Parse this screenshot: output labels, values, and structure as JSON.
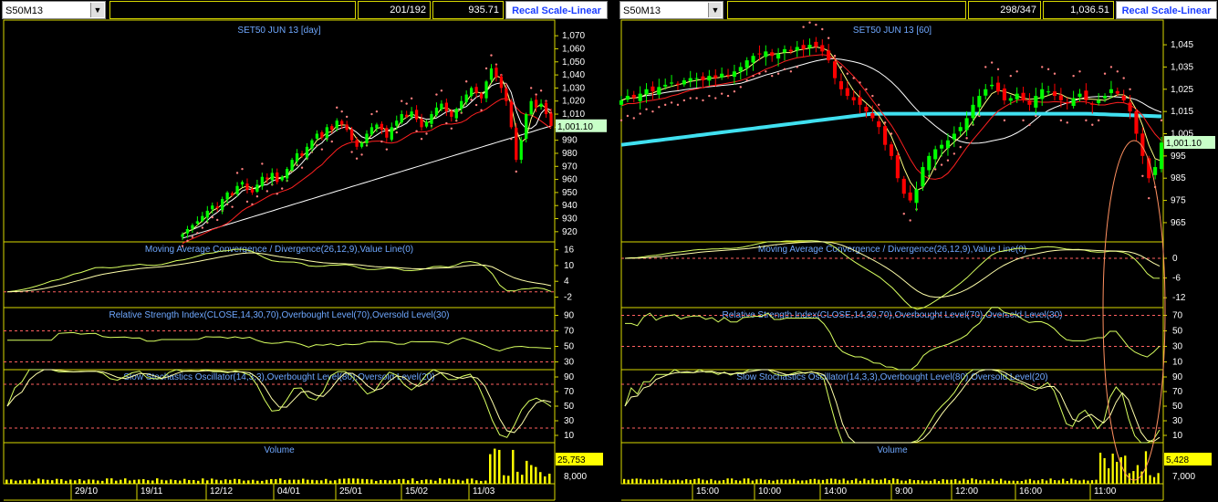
{
  "panes": [
    {
      "symbol": "S50M13",
      "count": "201/192",
      "price_readout": "935.71",
      "recal_label": "Recal Scale-Linear",
      "title": "SET50 JUN 13   [day]",
      "price_ticks": [
        "1,070",
        "1,060",
        "1,050",
        "1,040",
        "1,030",
        "1,020",
        "1,010",
        "1,000",
        "990",
        "980",
        "970",
        "960",
        "950",
        "940",
        "930",
        "920"
      ],
      "last_price": "1,001.10",
      "macd_title": "Moving Average Convergence / Divergence(26,12,9),Value Line(0)",
      "macd_ticks": [
        "16",
        "10",
        "4",
        "-2"
      ],
      "rsi_title": "Relative Strength Index(CLOSE,14,30,70),Overbought Level(70),Oversold Level(30)",
      "rsi_ticks": [
        "90",
        "70",
        "50",
        "30"
      ],
      "stoch_title": "Slow Stochastics Oscillator(14,3,3),Overbought Level(80),Oversold Level(20)",
      "stoch_ticks": [
        "90",
        "70",
        "50",
        "30",
        "10"
      ],
      "vol_title": "Volume",
      "vol_ticks": [
        "8,000"
      ],
      "vol_last": "25,753",
      "date_labels": [
        "29/10",
        "19/11",
        "12/12",
        "04/01",
        "25/01",
        "15/02",
        "11/03"
      ]
    },
    {
      "symbol": "S50M13",
      "count": "298/347",
      "price_readout": "1,036.51",
      "recal_label": "Recal Scale-Linear",
      "title": "SET50 JUN 13   [60]",
      "price_ticks": [
        "1,045",
        "1,035",
        "1,025",
        "1,015",
        "1,005",
        "995",
        "985",
        "975",
        "965"
      ],
      "last_price": "1,001.10",
      "macd_title": "Moving Average Convergence / Divergence(26,12,9),Value Line(0)",
      "macd_ticks": [
        "0",
        "-6",
        "-12"
      ],
      "rsi_title": "Relative Strength Index(CLOSE,14,30,70),Overbought Level(70),Oversold Level(30)",
      "rsi_ticks": [
        "70",
        "50",
        "30",
        "10"
      ],
      "stoch_title": "Slow Stochastics Oscillator(14,3,3),Overbought Level(80),Oversold Level(20)",
      "stoch_ticks": [
        "90",
        "70",
        "50",
        "30",
        "10"
      ],
      "vol_title": "Volume",
      "vol_ticks": [
        "7,000"
      ],
      "vol_last": "5,428",
      "date_labels": [
        "15:00",
        "10:00",
        "14:00",
        "9:00",
        "12:00",
        "16:00",
        "11:00"
      ]
    }
  ],
  "colors": {
    "bull": "#00ff00",
    "bear": "#ff0000",
    "grid": "#d8d800",
    "title": "#6fa8ff",
    "macd": "#d8ff60",
    "signal": "#ffffaa",
    "ref_line": "#ff6060",
    "sar": "#ff8080",
    "ma_white": "#ffffff",
    "ma_red": "#ff2020",
    "ma_cyan": "#40e0f0",
    "volume": "#ffff00"
  },
  "chart_data": [
    {
      "type": "candlestick",
      "title": "SET50 JUN 13   [day]",
      "ylim": [
        915,
        1075
      ],
      "last_price": 1001.1,
      "closes": [
        918,
        922,
        925,
        928,
        932,
        936,
        940,
        938,
        945,
        950,
        948,
        955,
        958,
        952,
        950,
        956,
        962,
        960,
        965,
        958,
        962,
        968,
        975,
        980,
        978,
        985,
        990,
        995,
        992,
        1000,
        998,
        1005,
        1002,
        998,
        990,
        985,
        988,
        995,
        1000,
        1002,
        998,
        992,
        1000,
        1005,
        1010,
        1008,
        1012,
        1006,
        1000,
        1004,
        1010,
        1015,
        1018,
        1012,
        1008,
        1014,
        1020,
        1025,
        1030,
        1026,
        1022,
        1035,
        1045,
        1038,
        1030,
        1020,
        1000,
        975,
        990,
        1010,
        1020,
        1015,
        1018,
        1010,
        1001
      ],
      "subcharts": {
        "macd": {
          "ylim": [
            -6,
            19
          ],
          "reference": 0
        },
        "rsi": {
          "ylim": [
            20,
            100
          ],
          "levels": [
            70,
            30
          ]
        },
        "stochastic": {
          "ylim": [
            0,
            100
          ],
          "levels": [
            80,
            20
          ]
        },
        "volume": {
          "last": 25753
        }
      }
    },
    {
      "type": "candlestick",
      "title": "SET50 JUN 13   [60]",
      "ylim": [
        958,
        1052
      ],
      "last_price": 1001.1,
      "closes": [
        1020,
        1022,
        1021,
        1023,
        1025,
        1024,
        1026,
        1027,
        1028,
        1027,
        1029,
        1030,
        1030,
        1029,
        1031,
        1030,
        1032,
        1031,
        1033,
        1035,
        1038,
        1040,
        1041,
        1042,
        1040,
        1041,
        1043,
        1042,
        1044,
        1043,
        1045,
        1044,
        1042,
        1038,
        1030,
        1025,
        1022,
        1020,
        1018,
        1015,
        1012,
        1008,
        1000,
        995,
        985,
        978,
        975,
        980,
        990,
        995,
        998,
        1000,
        1002,
        1005,
        1008,
        1012,
        1018,
        1022,
        1025,
        1027,
        1024,
        1020,
        1021,
        1023,
        1020,
        1018,
        1022,
        1025,
        1024,
        1022,
        1020,
        1019,
        1021,
        1023,
        1020,
        1018,
        1020,
        1022,
        1025,
        1023,
        1020,
        1015,
        1005,
        995,
        985,
        990,
        1001
      ],
      "subcharts": {
        "macd": {
          "ylim": [
            -15,
            5
          ],
          "reference": 0
        },
        "rsi": {
          "ylim": [
            0,
            80
          ],
          "levels": [
            70,
            30
          ]
        },
        "stochastic": {
          "ylim": [
            0,
            100
          ],
          "levels": [
            80,
            20
          ]
        },
        "volume": {
          "last": 5428
        }
      }
    }
  ]
}
